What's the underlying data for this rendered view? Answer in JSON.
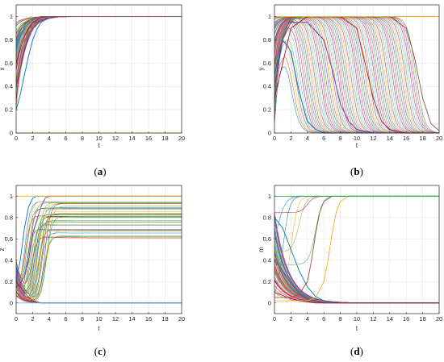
{
  "figure": {
    "panels": [
      {
        "id": "a",
        "caption_open": "(",
        "caption_letter": "a",
        "caption_close": ")"
      },
      {
        "id": "b",
        "caption_open": "(",
        "caption_letter": "b",
        "caption_close": ")"
      },
      {
        "id": "c",
        "caption_open": "(",
        "caption_letter": "c",
        "caption_close": ")"
      },
      {
        "id": "d",
        "caption_open": "(",
        "caption_letter": "d",
        "caption_close": ")"
      }
    ]
  },
  "chart_data": [
    {
      "type": "line",
      "panel": "a",
      "xlabel": "t",
      "ylabel": "x",
      "xlim": [
        0,
        20
      ],
      "ylim": [
        0,
        1.1
      ],
      "xticks": [
        0,
        2,
        4,
        6,
        8,
        10,
        12,
        14,
        16,
        18,
        20
      ],
      "yticks": [
        0,
        0.2,
        0.4,
        0.6,
        0.8,
        1
      ],
      "ytick_labels": [
        "0",
        "0.2",
        "0.4",
        "0.6",
        "0.8",
        "1"
      ],
      "grid": true,
      "series_description": "many trajectories rising from initial values between 0.2 and 1 to 1 by t≈6; one trajectory stays at 0",
      "series": [
        {
          "x": [
            0,
            0.5,
            1,
            1.5,
            2,
            2.5,
            3,
            4,
            5,
            6,
            20
          ],
          "values": [
            0.2,
            0.33,
            0.5,
            0.66,
            0.8,
            0.89,
            0.95,
            0.99,
            1,
            1,
            1
          ]
        },
        {
          "x": [
            0,
            0.5,
            1,
            1.5,
            2,
            3,
            4,
            5,
            20
          ],
          "values": [
            0.4,
            0.55,
            0.7,
            0.82,
            0.9,
            0.97,
            0.99,
            1,
            1
          ]
        },
        {
          "x": [
            0,
            0.5,
            1,
            1.5,
            2,
            3,
            4,
            20
          ],
          "values": [
            0.6,
            0.72,
            0.83,
            0.9,
            0.95,
            0.99,
            1,
            1
          ]
        },
        {
          "x": [
            0,
            0.5,
            1,
            2,
            3,
            20
          ],
          "values": [
            0.8,
            0.88,
            0.94,
            0.98,
            1,
            1
          ]
        },
        {
          "x": [
            0,
            20
          ],
          "values": [
            0,
            0
          ]
        }
      ]
    },
    {
      "type": "line",
      "panel": "b",
      "xlabel": "t",
      "ylabel": "y",
      "xlim": [
        0,
        20
      ],
      "ylim": [
        0,
        1.1
      ],
      "xticks": [
        0,
        2,
        4,
        6,
        8,
        10,
        12,
        14,
        16,
        18,
        20
      ],
      "yticks": [
        0,
        0.2,
        0.4,
        0.6,
        0.8,
        1
      ],
      "ytick_labels": [
        "0",
        "0.2",
        "0.4",
        "0.6",
        "0.8",
        "1"
      ],
      "grid": true,
      "series_description": "trajectories rise toward 1 then decay to 0 at varying times; the latest one decays near t≈18; one trajectory stays at 1",
      "series": [
        {
          "x": [
            0,
            1,
            2,
            3,
            4,
            5,
            6,
            20
          ],
          "values": [
            0.5,
            0.8,
            0.7,
            0.35,
            0.1,
            0.03,
            0,
            0
          ]
        },
        {
          "x": [
            0,
            1,
            2,
            4,
            6,
            7,
            8,
            9,
            10,
            12,
            20
          ],
          "values": [
            0.4,
            0.8,
            0.95,
            0.95,
            0.8,
            0.55,
            0.25,
            0.1,
            0.03,
            0,
            0
          ]
        },
        {
          "x": [
            0,
            2,
            4,
            8,
            10,
            11,
            12,
            13,
            14,
            16,
            20
          ],
          "values": [
            0.3,
            0.9,
            1,
            1,
            0.9,
            0.6,
            0.3,
            0.1,
            0.03,
            0,
            0
          ]
        },
        {
          "x": [
            0,
            2,
            5,
            10,
            14,
            16,
            17,
            18,
            19,
            20
          ],
          "values": [
            0.6,
            1,
            1,
            1,
            1,
            0.9,
            0.65,
            0.3,
            0.08,
            0.02
          ]
        },
        {
          "x": [
            0,
            20
          ],
          "values": [
            1,
            1
          ]
        }
      ]
    },
    {
      "type": "line",
      "panel": "c",
      "xlabel": "t",
      "ylabel": "z",
      "xlim": [
        0,
        20
      ],
      "ylim": [
        -0.1,
        1.1
      ],
      "xticks": [
        0,
        2,
        4,
        6,
        8,
        10,
        12,
        14,
        16,
        18,
        20
      ],
      "yticks": [
        0,
        0.2,
        0.4,
        0.6,
        0.8,
        1
      ],
      "ytick_labels": [
        "0",
        "0.2",
        "0.4",
        "0.6",
        "0.8",
        "1"
      ],
      "grid": true,
      "series_description": "trajectories split quickly before t≈4, converging to either 1 or 0",
      "series": [
        {
          "x": [
            0,
            0.5,
            1,
            1.5,
            2,
            2.5,
            3,
            20
          ],
          "values": [
            0.2,
            0.4,
            0.7,
            0.9,
            0.98,
            1,
            1,
            1
          ]
        },
        {
          "x": [
            0,
            0.5,
            1,
            1.5,
            2,
            3,
            3.5,
            4,
            20
          ],
          "values": [
            0.15,
            0.18,
            0.25,
            0.4,
            0.65,
            0.9,
            0.98,
            1,
            1
          ]
        },
        {
          "x": [
            0,
            0.5,
            1,
            1.5,
            2,
            3,
            20
          ],
          "values": [
            0.2,
            0.15,
            0.1,
            0.05,
            0.02,
            0,
            0
          ]
        },
        {
          "x": [
            0,
            0.5,
            1,
            2,
            3,
            20
          ],
          "values": [
            0.1,
            0.06,
            0.03,
            0.01,
            0,
            0
          ]
        },
        {
          "x": [
            0,
            20
          ],
          "values": [
            1,
            1
          ]
        },
        {
          "x": [
            0,
            20
          ],
          "values": [
            0,
            0
          ]
        }
      ]
    },
    {
      "type": "line",
      "panel": "d",
      "xlabel": "t",
      "ylabel": "m",
      "xlim": [
        0,
        20
      ],
      "ylim": [
        -0.1,
        1.1
      ],
      "xticks": [
        0,
        2,
        4,
        6,
        8,
        10,
        12,
        14,
        16,
        18,
        20
      ],
      "yticks": [
        0,
        0.2,
        0.4,
        0.6,
        0.8,
        1
      ],
      "ytick_labels": [
        "0",
        "0.2",
        "0.4",
        "0.6",
        "0.8",
        "1"
      ],
      "grid": true,
      "series_description": "most trajectories decay to 0 by t≈8; a few rise to 1 around t≈2–7",
      "series": [
        {
          "x": [
            0,
            1,
            2,
            3,
            4,
            5,
            6,
            8,
            20
          ],
          "values": [
            0.8,
            0.7,
            0.5,
            0.3,
            0.15,
            0.06,
            0.02,
            0,
            0
          ]
        },
        {
          "x": [
            0,
            1,
            2,
            3,
            4,
            6,
            20
          ],
          "values": [
            0.4,
            0.3,
            0.18,
            0.09,
            0.04,
            0,
            0
          ]
        },
        {
          "x": [
            0,
            1,
            2,
            3,
            4,
            5,
            20
          ],
          "values": [
            0.1,
            0.07,
            0.04,
            0.02,
            0.01,
            0,
            0
          ]
        },
        {
          "x": [
            0,
            2,
            3,
            4,
            4.5,
            5,
            5.5,
            6,
            7,
            20
          ],
          "values": [
            0.05,
            0.05,
            0.08,
            0.2,
            0.4,
            0.65,
            0.85,
            0.95,
            1,
            1
          ]
        },
        {
          "x": [
            0,
            4,
            5,
            6,
            6.5,
            7,
            7.5,
            8,
            9,
            20
          ],
          "values": [
            0.02,
            0.02,
            0.05,
            0.2,
            0.4,
            0.65,
            0.85,
            0.95,
            1,
            1
          ]
        },
        {
          "x": [
            0,
            0.5,
            1,
            1.5,
            2,
            3,
            20
          ],
          "values": [
            0.6,
            0.75,
            0.88,
            0.95,
            0.98,
            1,
            1
          ]
        },
        {
          "x": [
            0,
            20
          ],
          "values": [
            1,
            1
          ]
        }
      ]
    }
  ]
}
